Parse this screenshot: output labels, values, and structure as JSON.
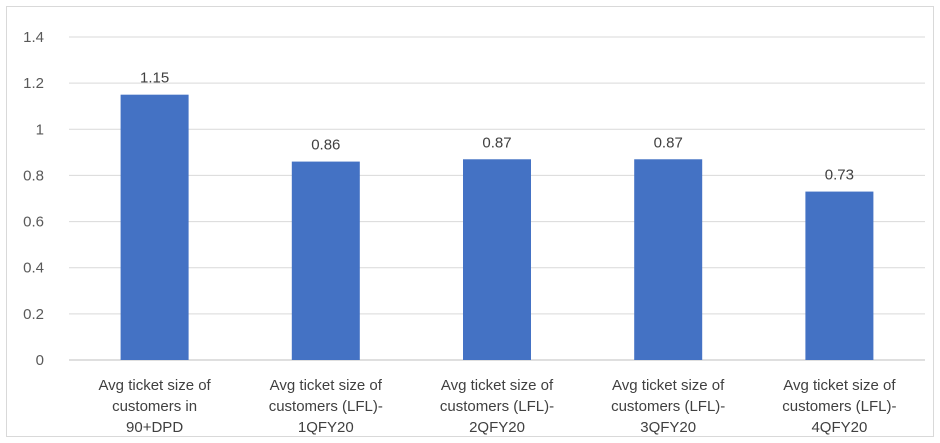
{
  "chart_data": {
    "type": "bar",
    "title": "",
    "xlabel": "",
    "ylabel": "",
    "categories": [
      [
        "Avg ticket size of",
        "customers in",
        "90+DPD"
      ],
      [
        "Avg ticket size of",
        "customers (LFL)-",
        "1QFY20"
      ],
      [
        "Avg ticket size of",
        "customers (LFL)-",
        "2QFY20"
      ],
      [
        "Avg ticket size of",
        "customers (LFL)-",
        "3QFY20"
      ],
      [
        "Avg ticket size of",
        "customers (LFL)-",
        "4QFY20"
      ]
    ],
    "values": [
      1.15,
      0.86,
      0.87,
      0.87,
      0.73
    ],
    "data_labels": [
      "1.15",
      "0.86",
      "0.87",
      "0.87",
      "0.73"
    ],
    "ylim": [
      0,
      1.4
    ],
    "yticks": [
      0,
      0.2,
      0.4,
      0.6,
      0.8,
      1,
      1.2,
      1.4
    ],
    "ytick_labels": [
      "0",
      "0.2",
      "0.4",
      "0.6",
      "0.8",
      "1",
      "1.2",
      "1.4"
    ],
    "grid": true,
    "legend": "none",
    "bar_color": "#4472C4"
  }
}
